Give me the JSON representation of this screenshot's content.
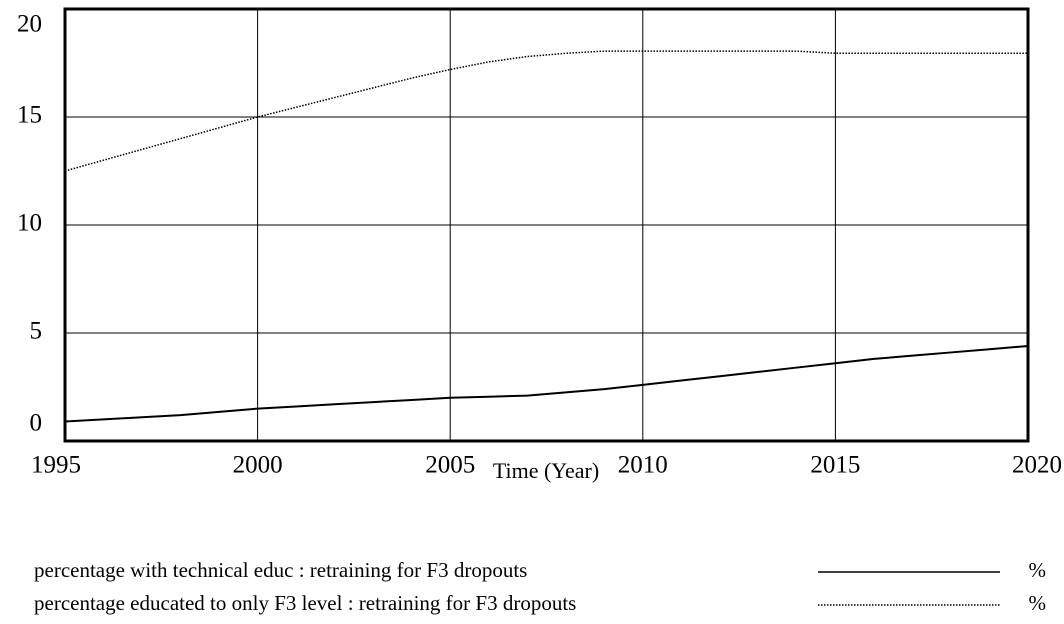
{
  "chart_data": {
    "type": "line",
    "x_label": "Time (Year)",
    "x": [
      1995,
      1996,
      1997,
      1998,
      1999,
      2000,
      2001,
      2002,
      2003,
      2004,
      2005,
      2006,
      2007,
      2008,
      2009,
      2010,
      2011,
      2012,
      2013,
      2014,
      2015,
      2016,
      2017,
      2018,
      2019,
      2020
    ],
    "series": [
      {
        "name": "percentage with technical educ : retraining for F3 dropouts",
        "unit": "%",
        "color": "#000000",
        "dash": "solid",
        "values": [
          0.9,
          1.0,
          1.1,
          1.2,
          1.35,
          1.5,
          1.6,
          1.7,
          1.8,
          1.9,
          2.0,
          2.05,
          2.1,
          2.25,
          2.4,
          2.6,
          2.8,
          3.0,
          3.2,
          3.4,
          3.6,
          3.8,
          3.95,
          4.1,
          4.25,
          4.4
        ]
      },
      {
        "name": "percentage educated to only F3 level : retraining for F3 dropouts",
        "unit": "%",
        "color": "#000000",
        "dash": "dotted",
        "values": [
          12.5,
          13.0,
          13.5,
          14.0,
          14.5,
          15.0,
          15.45,
          15.9,
          16.35,
          16.8,
          17.2,
          17.55,
          17.8,
          17.95,
          18.05,
          18.05,
          18.05,
          18.05,
          18.05,
          18.05,
          17.95,
          17.95,
          17.95,
          17.95,
          17.95,
          17.95
        ]
      }
    ],
    "xlim": [
      1995,
      2020
    ],
    "xticks": [
      1995,
      2000,
      2005,
      2010,
      2015,
      2020
    ],
    "ylim": [
      0,
      20
    ],
    "yticks": [
      0,
      5,
      10,
      15,
      20
    ],
    "grid": true
  }
}
